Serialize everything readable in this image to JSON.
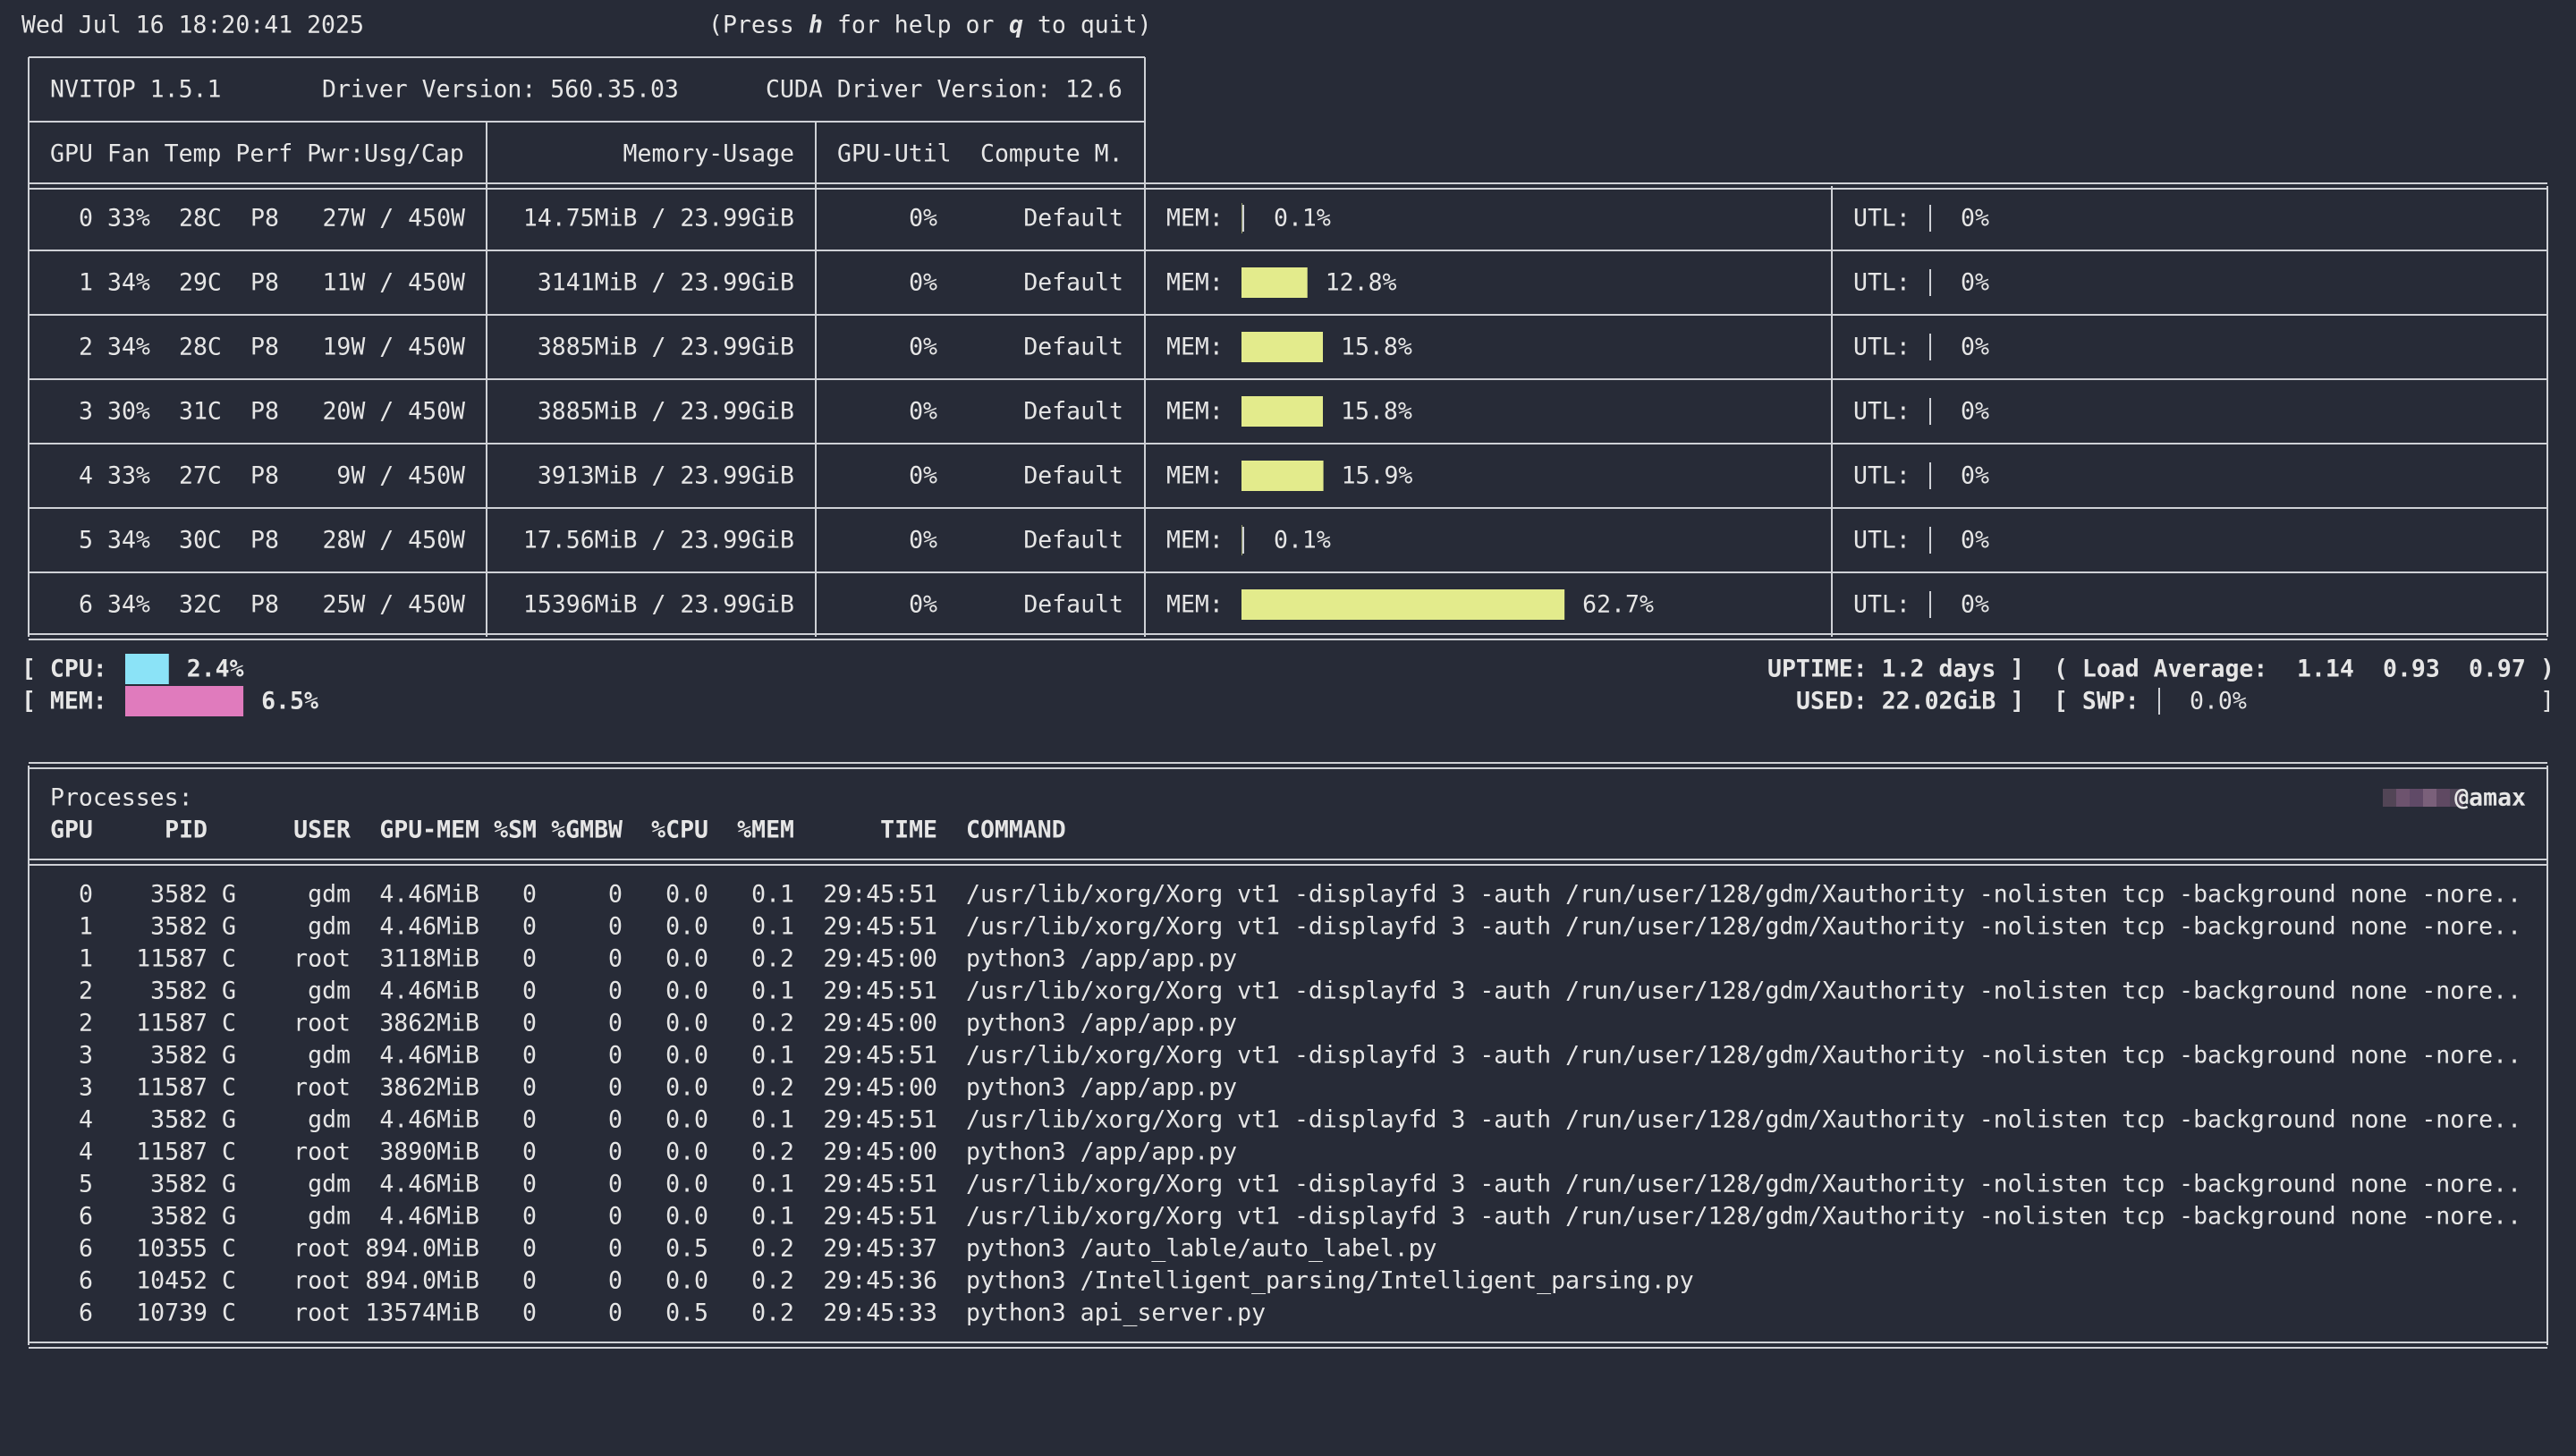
{
  "header": {
    "datetime": "Wed Jul 16 18:20:41 2025",
    "help": [
      "(Press ",
      "h",
      " for help or ",
      "q",
      " to quit)"
    ]
  },
  "top": {
    "version": "NVITOP 1.5.1",
    "driver": "Driver Version: 560.35.03",
    "cuda": "CUDA Driver Version: 12.6"
  },
  "gpu_table": {
    "columns": [
      "GPU Fan Temp Perf Pwr:Usg/Cap",
      "Memory-Usage",
      "GPU-Util",
      "Compute M."
    ],
    "mem_tag": "MEM:",
    "util_tag": "UTL:",
    "text_color": "#80d08c",
    "bar_color": "#e3eb8c",
    "rows": [
      {
        "id": "0",
        "fan": "33%",
        "temp": "28C",
        "perf": "P8",
        "power": "27W / 450W",
        "memory": "14.75MiB / 23.99GiB",
        "util": "0%",
        "compute": "Default",
        "mem_bar": {
          "value": 0.1,
          "label": "0.1%"
        },
        "util_bar": {
          "value": 0,
          "label": "0%"
        },
        "index_color": "#62d68b"
      },
      {
        "id": "1",
        "fan": "34%",
        "temp": "29C",
        "perf": "P8",
        "power": "11W / 450W",
        "memory": "3141MiB / 23.99GiB",
        "util": "0%",
        "compute": "Default",
        "mem_bar": {
          "value": 12.8,
          "label": "12.8%"
        },
        "util_bar": {
          "value": 0,
          "label": "0%"
        },
        "index_color": "#e0e88a"
      },
      {
        "id": "2",
        "fan": "34%",
        "temp": "28C",
        "perf": "P8",
        "power": "19W / 450W",
        "memory": "3885MiB / 23.99GiB",
        "util": "0%",
        "compute": "Default",
        "mem_bar": {
          "value": 15.8,
          "label": "15.8%"
        },
        "util_bar": {
          "value": 0,
          "label": "0%"
        },
        "index_color": "#e0e88a"
      },
      {
        "id": "3",
        "fan": "30%",
        "temp": "31C",
        "perf": "P8",
        "power": "20W / 450W",
        "memory": "3885MiB / 23.99GiB",
        "util": "0%",
        "compute": "Default",
        "mem_bar": {
          "value": 15.8,
          "label": "15.8%"
        },
        "util_bar": {
          "value": 0,
          "label": "0%"
        },
        "index_color": "#e0e88a"
      },
      {
        "id": "4",
        "fan": "33%",
        "temp": "27C",
        "perf": "P8",
        "power": "9W / 450W",
        "memory": "3913MiB / 23.99GiB",
        "util": "0%",
        "compute": "Default",
        "mem_bar": {
          "value": 15.9,
          "label": "15.9%"
        },
        "util_bar": {
          "value": 0,
          "label": "0%"
        },
        "index_color": "#e0e88a"
      },
      {
        "id": "5",
        "fan": "34%",
        "temp": "30C",
        "perf": "P8",
        "power": "28W / 450W",
        "memory": "17.56MiB / 23.99GiB",
        "util": "0%",
        "compute": "Default",
        "mem_bar": {
          "value": 0.1,
          "label": "0.1%"
        },
        "util_bar": {
          "value": 0,
          "label": "0%"
        },
        "index_color": "#62d68b"
      },
      {
        "id": "6",
        "fan": "34%",
        "temp": "32C",
        "perf": "P8",
        "power": "25W / 450W",
        "memory": "15396MiB / 23.99GiB",
        "util": "0%",
        "compute": "Default",
        "mem_bar": {
          "value": 62.7,
          "label": "62.7%"
        },
        "util_bar": {
          "value": 0,
          "label": "0%"
        },
        "index_color": "#e0e88a"
      }
    ]
  },
  "host": {
    "cpu": {
      "tag": "[ CPU:",
      "value": 2.4,
      "label": "2.4%",
      "color": "#8be3f7"
    },
    "mem": {
      "tag": "[ MEM:",
      "value": 6.5,
      "label": "6.5%",
      "color": "#e07bbd"
    },
    "uptime": "UPTIME: 1.2 days ]",
    "load": {
      "tag": "( Load Average:",
      "values": [
        "1.14",
        "0.93",
        "0.97"
      ],
      "close": ")"
    },
    "used": "USED: 22.02GiB ]",
    "swp": {
      "tag": "[ SWP:",
      "value": 0,
      "label": "0.0%",
      "close": "]",
      "color": "#a08de4"
    }
  },
  "processes": {
    "title": "Processes:",
    "host": "@amax",
    "columns": [
      "GPU",
      "PID",
      "USER",
      "GPU-MEM",
      "%SM",
      "%GMBW",
      "%CPU",
      "%MEM",
      "TIME",
      "COMMAND"
    ],
    "rows": [
      [
        "0",
        "3582",
        "G",
        "gdm",
        "4.46MiB",
        "0",
        "0",
        "0.0",
        "0.1",
        "29:45:51",
        "/usr/lib/xorg/Xorg vt1 -displayfd 3 -auth /run/user/128/gdm/Xauthority -nolisten tcp -background none -nore.."
      ],
      [
        "1",
        "3582",
        "G",
        "gdm",
        "4.46MiB",
        "0",
        "0",
        "0.0",
        "0.1",
        "29:45:51",
        "/usr/lib/xorg/Xorg vt1 -displayfd 3 -auth /run/user/128/gdm/Xauthority -nolisten tcp -background none -nore.."
      ],
      [
        "1",
        "11587",
        "C",
        "root",
        "3118MiB",
        "0",
        "0",
        "0.0",
        "0.2",
        "29:45:00",
        "python3 /app/app.py"
      ],
      [
        "2",
        "3582",
        "G",
        "gdm",
        "4.46MiB",
        "0",
        "0",
        "0.0",
        "0.1",
        "29:45:51",
        "/usr/lib/xorg/Xorg vt1 -displayfd 3 -auth /run/user/128/gdm/Xauthority -nolisten tcp -background none -nore.."
      ],
      [
        "2",
        "11587",
        "C",
        "root",
        "3862MiB",
        "0",
        "0",
        "0.0",
        "0.2",
        "29:45:00",
        "python3 /app/app.py"
      ],
      [
        "3",
        "3582",
        "G",
        "gdm",
        "4.46MiB",
        "0",
        "0",
        "0.0",
        "0.1",
        "29:45:51",
        "/usr/lib/xorg/Xorg vt1 -displayfd 3 -auth /run/user/128/gdm/Xauthority -nolisten tcp -background none -nore.."
      ],
      [
        "3",
        "11587",
        "C",
        "root",
        "3862MiB",
        "0",
        "0",
        "0.0",
        "0.2",
        "29:45:00",
        "python3 /app/app.py"
      ],
      [
        "4",
        "3582",
        "G",
        "gdm",
        "4.46MiB",
        "0",
        "0",
        "0.0",
        "0.1",
        "29:45:51",
        "/usr/lib/xorg/Xorg vt1 -displayfd 3 -auth /run/user/128/gdm/Xauthority -nolisten tcp -background none -nore.."
      ],
      [
        "4",
        "11587",
        "C",
        "root",
        "3890MiB",
        "0",
        "0",
        "0.0",
        "0.2",
        "29:45:00",
        "python3 /app/app.py"
      ],
      [
        "5",
        "3582",
        "G",
        "gdm",
        "4.46MiB",
        "0",
        "0",
        "0.0",
        "0.1",
        "29:45:51",
        "/usr/lib/xorg/Xorg vt1 -displayfd 3 -auth /run/user/128/gdm/Xauthority -nolisten tcp -background none -nore.."
      ],
      [
        "6",
        "3582",
        "G",
        "gdm",
        "4.46MiB",
        "0",
        "0",
        "0.0",
        "0.1",
        "29:45:51",
        "/usr/lib/xorg/Xorg vt1 -displayfd 3 -auth /run/user/128/gdm/Xauthority -nolisten tcp -background none -nore.."
      ],
      [
        "6",
        "10355",
        "C",
        "root",
        "894.0MiB",
        "0",
        "0",
        "0.5",
        "0.2",
        "29:45:37",
        "python3 /auto_lable/auto_label.py"
      ],
      [
        "6",
        "10452",
        "C",
        "root",
        "894.0MiB",
        "0",
        "0",
        "0.0",
        "0.2",
        "29:45:36",
        "python3 /Intelligent_parsing/Intelligent_parsing.py"
      ],
      [
        "6",
        "10739",
        "C",
        "root",
        "13574MiB",
        "0",
        "0",
        "0.5",
        "0.2",
        "29:45:33",
        "python3 api_server.py"
      ]
    ]
  }
}
